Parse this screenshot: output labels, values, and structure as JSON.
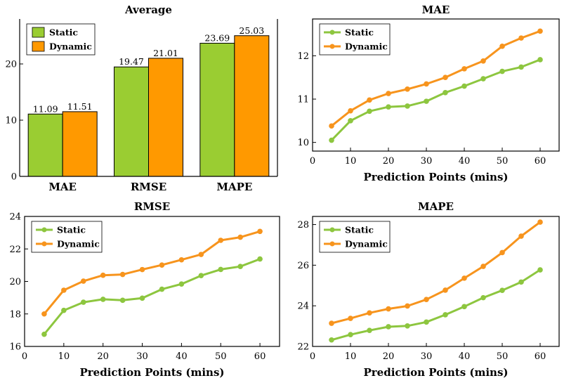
{
  "colors": {
    "static": "#8dc63f",
    "dynamic": "#f7941d",
    "static_bar": "#9acd32",
    "dynamic_bar": "#ff9900"
  },
  "chart_data": [
    {
      "type": "bar",
      "title": "Average",
      "categories": [
        "MAE",
        "RMSE",
        "MAPE"
      ],
      "series": [
        {
          "name": "Static",
          "values": [
            11.09,
            19.47,
            23.69
          ],
          "labels": [
            "11.09",
            "19.47",
            "23.69"
          ]
        },
        {
          "name": "Dynamic",
          "values": [
            11.51,
            21.01,
            25.03
          ],
          "labels": [
            "11.51",
            "21.01",
            "25.03"
          ]
        }
      ],
      "ylim": [
        0,
        28
      ],
      "yticks": [
        0,
        10,
        20
      ],
      "xlabel": "",
      "ylabel": "",
      "legend": "top-left"
    },
    {
      "type": "line",
      "title": "MAE",
      "x": [
        5,
        10,
        15,
        20,
        25,
        30,
        35,
        40,
        45,
        50,
        55,
        60
      ],
      "series": [
        {
          "name": "Static",
          "values": [
            10.05,
            10.5,
            10.72,
            10.82,
            10.84,
            10.95,
            11.15,
            11.3,
            11.47,
            11.64,
            11.74,
            11.91
          ]
        },
        {
          "name": "Dynamic",
          "values": [
            10.38,
            10.73,
            10.98,
            11.13,
            11.23,
            11.35,
            11.5,
            11.7,
            11.88,
            12.22,
            12.41,
            12.57
          ]
        }
      ],
      "xlim": [
        0,
        65
      ],
      "ylim": [
        9.8,
        12.85
      ],
      "xticks": [
        0,
        10,
        20,
        30,
        40,
        50,
        60
      ],
      "yticks": [
        10,
        11,
        12
      ],
      "xlabel": "Prediction Points (mins)",
      "legend": "top-left"
    },
    {
      "type": "line",
      "title": "RMSE",
      "x": [
        5,
        10,
        15,
        20,
        25,
        30,
        35,
        40,
        45,
        50,
        55,
        60
      ],
      "series": [
        {
          "name": "Static",
          "values": [
            16.75,
            18.22,
            18.72,
            18.9,
            18.84,
            18.97,
            19.52,
            19.84,
            20.36,
            20.74,
            20.92,
            21.38
          ]
        },
        {
          "name": "Dynamic",
          "values": [
            18.0,
            19.46,
            20.02,
            20.38,
            20.43,
            20.73,
            21.01,
            21.33,
            21.66,
            22.53,
            22.72,
            23.08
          ]
        }
      ],
      "xlim": [
        0,
        65
      ],
      "ylim": [
        16,
        24
      ],
      "xticks": [
        0,
        10,
        20,
        30,
        40,
        50,
        60
      ],
      "yticks": [
        16,
        18,
        20,
        22,
        24
      ],
      "xlabel": "Prediction Points (mins)",
      "legend": "top-left"
    },
    {
      "type": "line",
      "title": "MAPE",
      "x": [
        5,
        10,
        15,
        20,
        25,
        30,
        35,
        40,
        45,
        50,
        55,
        60
      ],
      "series": [
        {
          "name": "Static",
          "values": [
            22.32,
            22.58,
            22.79,
            22.97,
            23.01,
            23.2,
            23.56,
            23.96,
            24.4,
            24.76,
            25.17,
            25.77
          ]
        },
        {
          "name": "Dynamic",
          "values": [
            23.14,
            23.38,
            23.65,
            23.85,
            23.99,
            24.31,
            24.77,
            25.36,
            25.94,
            26.62,
            27.43,
            28.12
          ]
        }
      ],
      "xlim": [
        0,
        65
      ],
      "ylim": [
        22,
        28.4
      ],
      "xticks": [
        0,
        10,
        20,
        30,
        40,
        50,
        60
      ],
      "yticks": [
        22,
        24,
        26,
        28
      ],
      "xlabel": "Prediction Points (mins)",
      "legend": "top-left"
    }
  ]
}
